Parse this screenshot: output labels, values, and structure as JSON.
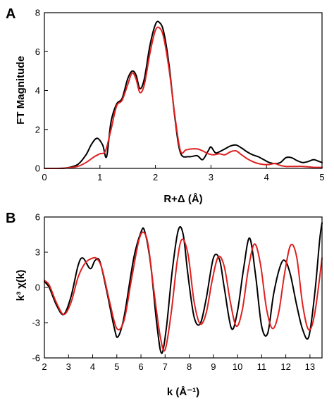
{
  "chart_data": [
    {
      "type": "line",
      "panel_label": "A",
      "xlabel": "R+Δ (Å)",
      "ylabel": "FT Magnitude",
      "xlim": [
        0,
        5
      ],
      "ylim": [
        0,
        8
      ],
      "xticks": [
        0,
        1,
        2,
        3,
        4,
        5
      ],
      "yticks": [
        0,
        2,
        4,
        6,
        8
      ],
      "grid": false,
      "series": [
        {
          "color": "#000000",
          "x": [
            0.0,
            0.2,
            0.4,
            0.6,
            0.75,
            0.85,
            0.95,
            1.05,
            1.12,
            1.2,
            1.3,
            1.4,
            1.5,
            1.58,
            1.65,
            1.72,
            1.8,
            1.9,
            2.0,
            2.07,
            2.15,
            2.25,
            2.35,
            2.45,
            2.6,
            2.75,
            2.85,
            2.95,
            3.0,
            3.08,
            3.15,
            3.25,
            3.35,
            3.45,
            3.55,
            3.65,
            3.75,
            3.85,
            3.95,
            4.05,
            4.15,
            4.25,
            4.35,
            4.45,
            4.55,
            4.65,
            4.75,
            4.85,
            4.95,
            5.0
          ],
          "y": [
            0.0,
            0.0,
            0.02,
            0.2,
            0.7,
            1.25,
            1.55,
            1.2,
            0.6,
            2.4,
            3.3,
            3.6,
            4.6,
            5.0,
            4.8,
            4.1,
            4.6,
            6.3,
            7.4,
            7.5,
            7.0,
            5.2,
            2.6,
            0.8,
            0.6,
            0.65,
            0.45,
            0.9,
            1.1,
            0.8,
            0.85,
            1.0,
            1.15,
            1.2,
            1.05,
            0.85,
            0.7,
            0.6,
            0.45,
            0.3,
            0.25,
            0.3,
            0.55,
            0.55,
            0.4,
            0.3,
            0.35,
            0.45,
            0.35,
            0.3
          ]
        },
        {
          "color": "#e02020",
          "x": [
            0.0,
            0.2,
            0.4,
            0.6,
            0.75,
            0.9,
            1.0,
            1.1,
            1.2,
            1.3,
            1.4,
            1.5,
            1.58,
            1.65,
            1.72,
            1.8,
            1.9,
            2.0,
            2.08,
            2.15,
            2.25,
            2.35,
            2.45,
            2.55,
            2.65,
            2.75,
            2.85,
            2.95,
            3.05,
            3.15,
            3.25,
            3.35,
            3.45,
            3.55,
            3.65,
            3.75,
            3.85,
            3.95,
            4.05,
            4.15,
            4.25,
            4.35,
            4.45,
            4.55,
            4.65,
            4.75,
            4.85,
            4.95,
            5.0
          ],
          "y": [
            0.0,
            0.0,
            0.02,
            0.1,
            0.3,
            0.6,
            0.75,
            0.9,
            2.0,
            3.2,
            3.5,
            4.3,
            4.9,
            4.6,
            3.9,
            4.3,
            5.9,
            7.1,
            7.2,
            6.7,
            5.0,
            2.7,
            0.9,
            0.95,
            1.0,
            1.0,
            0.9,
            0.75,
            0.7,
            0.75,
            0.7,
            0.85,
            0.9,
            0.7,
            0.5,
            0.35,
            0.25,
            0.2,
            0.2,
            0.25,
            0.15,
            0.1,
            0.1,
            0.1,
            0.1,
            0.08,
            0.05,
            0.05,
            0.05
          ]
        }
      ]
    },
    {
      "type": "line",
      "panel_label": "B",
      "xlabel": "k (Å⁻¹)",
      "ylabel": "k³ χ(k)",
      "xlim": [
        2,
        13.5
      ],
      "ylim": [
        -6,
        6
      ],
      "xticks": [
        2,
        3,
        4,
        5,
        6,
        7,
        8,
        9,
        10,
        11,
        12,
        13
      ],
      "yticks": [
        6,
        3,
        0,
        -3,
        -6
      ],
      "grid": false,
      "series": [
        {
          "color": "#000000",
          "x": [
            2.0,
            2.2,
            2.5,
            2.8,
            3.1,
            3.4,
            3.6,
            3.9,
            4.1,
            4.3,
            4.6,
            4.9,
            5.05,
            5.3,
            5.7,
            6.0,
            6.15,
            6.4,
            6.65,
            6.85,
            7.05,
            7.3,
            7.55,
            7.75,
            7.95,
            8.2,
            8.45,
            8.7,
            9.0,
            9.25,
            9.45,
            9.75,
            10.0,
            10.25,
            10.5,
            10.75,
            11.0,
            11.25,
            11.5,
            11.8,
            12.0,
            12.2,
            12.45,
            12.7,
            12.95,
            13.2,
            13.4,
            13.5
          ],
          "y": [
            0.5,
            0.0,
            -1.5,
            -2.3,
            -0.8,
            1.9,
            2.5,
            1.6,
            2.3,
            2.2,
            -0.5,
            -3.5,
            -4.2,
            -2.5,
            2.5,
            4.7,
            4.8,
            2.0,
            -3.0,
            -5.6,
            -3.5,
            1.5,
            4.9,
            4.5,
            1.0,
            -2.5,
            -3.1,
            -1.0,
            2.5,
            2.4,
            0.0,
            -3.5,
            -2.0,
            1.6,
            4.2,
            1.0,
            -3.3,
            -3.9,
            -0.5,
            2.0,
            2.2,
            1.0,
            -1.5,
            -3.6,
            -4.2,
            -0.5,
            4.0,
            5.5
          ]
        },
        {
          "color": "#e02020",
          "x": [
            2.0,
            2.2,
            2.5,
            2.8,
            3.1,
            3.4,
            3.7,
            4.0,
            4.2,
            4.4,
            4.7,
            5.0,
            5.3,
            5.6,
            5.9,
            6.1,
            6.3,
            6.55,
            6.8,
            7.0,
            7.25,
            7.5,
            7.7,
            7.95,
            8.2,
            8.45,
            8.7,
            8.95,
            9.2,
            9.45,
            9.7,
            9.95,
            10.2,
            10.45,
            10.7,
            10.95,
            11.2,
            11.45,
            11.7,
            11.95,
            12.2,
            12.45,
            12.7,
            12.95,
            13.2,
            13.5
          ],
          "y": [
            0.6,
            0.2,
            -1.3,
            -2.3,
            -1.3,
            0.9,
            2.1,
            2.5,
            2.4,
            1.5,
            -1.2,
            -3.5,
            -2.8,
            0.6,
            3.9,
            4.7,
            3.6,
            -0.5,
            -4.2,
            -5.3,
            -2.2,
            2.2,
            4.1,
            2.8,
            -1.2,
            -3.1,
            -2.2,
            0.6,
            2.6,
            1.8,
            -1.2,
            -3.3,
            -1.9,
            1.6,
            3.7,
            2.0,
            -1.8,
            -3.5,
            -2.2,
            1.2,
            3.6,
            2.6,
            -1.5,
            -3.6,
            -2.2,
            2.5
          ]
        }
      ]
    }
  ]
}
